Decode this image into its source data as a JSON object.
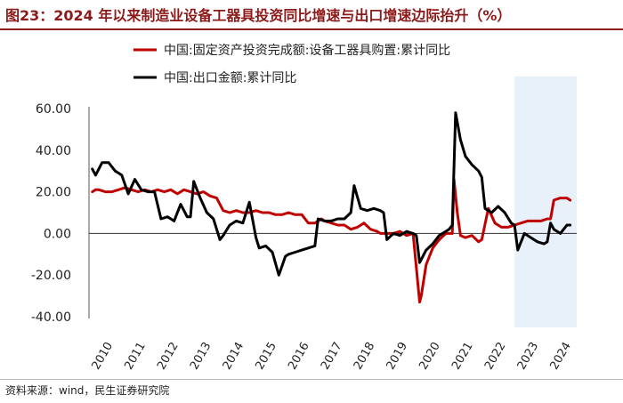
{
  "title": "图23：2024 年以来制造业设备工器具投资同比增速与出口增速边际抬升（%）",
  "source": "资料来源：wind，民生证券研究院",
  "colors": {
    "title": "#8b1a1a",
    "investment": "#c00000",
    "exports": "#000000",
    "highlight": "#e8f0fa"
  },
  "chart_data": {
    "type": "line",
    "ylim": [
      -40,
      60
    ],
    "yticks": [
      60,
      40,
      20,
      0,
      -20,
      -40
    ],
    "ytick_labels": [
      "60.00",
      "40.00",
      "20.00",
      "0.00",
      "-20.00",
      "-40.00"
    ],
    "xlim": [
      2010.0,
      2024.9
    ],
    "xtick_labels": [
      "2010",
      "2011",
      "2012",
      "2013",
      "2014",
      "2015",
      "2016",
      "2017",
      "2018",
      "2019",
      "2020",
      "2021",
      "2022",
      "2023",
      "2024"
    ],
    "highlight_range": [
      2023.0,
      2024.9
    ],
    "legend_position": "top-left",
    "series": [
      {
        "name": "中国:固定资产投资完成额:设备工器具购置:累计同比",
        "color": "#c00000",
        "x": [
          2010.1,
          2010.2,
          2010.3,
          2010.5,
          2010.7,
          2010.9,
          2011.1,
          2011.3,
          2011.5,
          2011.7,
          2011.9,
          2012.1,
          2012.3,
          2012.5,
          2012.7,
          2012.9,
          2013.1,
          2013.3,
          2013.5,
          2013.7,
          2013.9,
          2014.1,
          2014.3,
          2014.5,
          2014.7,
          2014.9,
          2015.1,
          2015.3,
          2015.5,
          2015.7,
          2015.9,
          2016.1,
          2016.3,
          2016.5,
          2016.7,
          2016.9,
          2017.1,
          2017.2,
          2017.4,
          2017.6,
          2017.8,
          2018.0,
          2018.2,
          2018.4,
          2018.6,
          2018.8,
          2018.9,
          2019.1,
          2019.3,
          2019.5,
          2019.7,
          2019.9,
          2020.1,
          2020.15,
          2020.3,
          2020.5,
          2020.7,
          2020.9,
          2021.1,
          2021.15,
          2021.25,
          2021.35,
          2021.5,
          2021.7,
          2021.9,
          2022.0,
          2022.2,
          2022.4,
          2022.6,
          2022.8,
          2023.0,
          2023.2,
          2023.4,
          2023.6,
          2023.8,
          2024.0,
          2024.1,
          2024.2,
          2024.4,
          2024.6,
          2024.7
        ],
        "y": [
          20,
          21,
          21,
          20,
          20,
          21,
          22,
          21,
          20,
          21,
          20,
          21,
          20,
          21,
          19,
          21,
          20,
          19,
          20,
          18,
          17,
          11,
          10,
          11,
          10,
          10,
          11,
          10,
          10,
          9,
          9,
          10,
          9,
          9,
          5,
          5,
          7,
          6,
          5,
          4,
          4,
          2,
          3,
          5,
          2,
          1,
          0,
          0,
          0,
          1,
          -1,
          0,
          -33,
          -30,
          -15,
          -7,
          -3,
          0,
          0,
          26,
          10,
          -1,
          -2,
          -1,
          -4,
          -3,
          12,
          5,
          3,
          3,
          4,
          5,
          6,
          6,
          6,
          7,
          7,
          16,
          17,
          17,
          16
        ]
      },
      {
        "name": "中国:出口金额:累计同比",
        "color": "#000000",
        "x": [
          2010.1,
          2010.2,
          2010.4,
          2010.6,
          2010.8,
          2011.0,
          2011.2,
          2011.4,
          2011.6,
          2011.8,
          2012.0,
          2012.2,
          2012.4,
          2012.6,
          2012.8,
          2013.0,
          2013.1,
          2013.2,
          2013.4,
          2013.6,
          2013.8,
          2014.0,
          2014.1,
          2014.3,
          2014.5,
          2014.7,
          2014.9,
          2015.1,
          2015.2,
          2015.4,
          2015.6,
          2015.8,
          2016.0,
          2016.1,
          2016.3,
          2016.5,
          2016.7,
          2016.9,
          2017.0,
          2017.2,
          2017.4,
          2017.6,
          2017.8,
          2018.0,
          2018.1,
          2018.3,
          2018.5,
          2018.7,
          2018.9,
          2019.0,
          2019.1,
          2019.3,
          2019.5,
          2019.7,
          2019.9,
          2020.0,
          2020.1,
          2020.3,
          2020.5,
          2020.7,
          2020.9,
          2021.0,
          2021.1,
          2021.2,
          2021.35,
          2021.5,
          2021.7,
          2021.9,
          2022.0,
          2022.1,
          2022.3,
          2022.5,
          2022.7,
          2022.9,
          2023.0,
          2023.1,
          2023.3,
          2023.5,
          2023.7,
          2023.9,
          2024.0,
          2024.1,
          2024.2,
          2024.4,
          2024.6,
          2024.7
        ],
        "y": [
          31,
          28,
          34,
          34,
          30,
          28,
          19,
          26,
          21,
          20,
          20,
          7,
          8,
          6,
          14,
          8,
          8,
          25,
          17,
          10,
          7,
          -3,
          -1,
          4,
          6,
          5,
          15,
          -2,
          -7,
          -6,
          -9,
          -20,
          -11,
          -10,
          -9,
          -8,
          -7,
          -6,
          7,
          6,
          6,
          7,
          7,
          10,
          23,
          12,
          11,
          12,
          11,
          10,
          -3,
          0,
          -1,
          1,
          0,
          -1,
          -14,
          -8,
          -5,
          -1,
          1,
          2,
          4,
          58,
          45,
          37,
          33,
          30,
          27,
          12,
          10,
          13,
          10,
          5,
          4,
          -8,
          0,
          -2,
          -4,
          -5,
          -4,
          5,
          2,
          0,
          4,
          4
        ]
      }
    ]
  }
}
